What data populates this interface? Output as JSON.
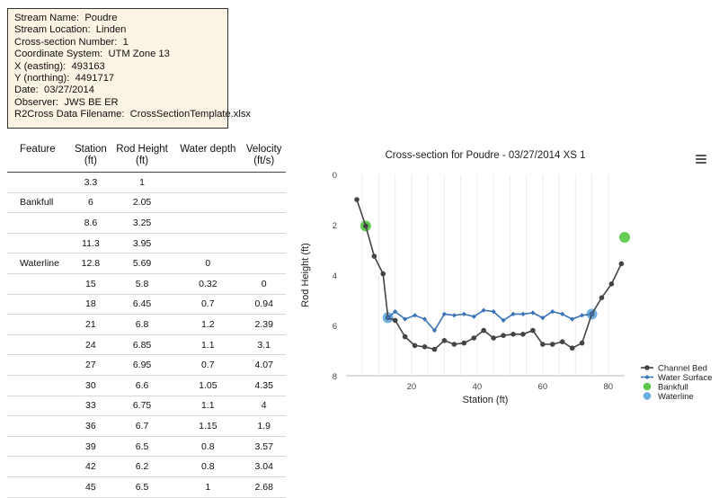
{
  "info": [
    {
      "label": "Stream Name:",
      "value": "Poudre"
    },
    {
      "label": "Stream Location:",
      "value": "Linden"
    },
    {
      "label": "Cross-section Number:",
      "value": "1"
    },
    {
      "label": "Coordinate System:",
      "value": "UTM Zone 13"
    },
    {
      "label": "X (easting):",
      "value": "493163"
    },
    {
      "label": "Y (northing):",
      "value": "4491717"
    },
    {
      "label": "Date:",
      "value": "03/27/2014"
    },
    {
      "label": "Observer:",
      "value": "JWS BE ER"
    },
    {
      "label": "R2Cross Data Filename:",
      "value": "CrossSectionTemplate.xlsx"
    }
  ],
  "table": {
    "headers": {
      "feature": "Feature",
      "station": "Station",
      "station_unit": "(ft)",
      "rod": "Rod Height",
      "rod_unit": "(ft)",
      "depth": "Water depth",
      "depth_unit": "(ft)",
      "velocity": "Velocity",
      "velocity_unit": "(ft/s)"
    },
    "rows": [
      {
        "feature": "",
        "station": "3.3",
        "rod": "1",
        "depth": "",
        "velocity": ""
      },
      {
        "feature": "Bankfull",
        "station": "6",
        "rod": "2.05",
        "depth": "",
        "velocity": ""
      },
      {
        "feature": "",
        "station": "8.6",
        "rod": "3.25",
        "depth": "",
        "velocity": ""
      },
      {
        "feature": "",
        "station": "11.3",
        "rod": "3.95",
        "depth": "",
        "velocity": ""
      },
      {
        "feature": "Waterline",
        "station": "12.8",
        "rod": "5.69",
        "depth": "0",
        "velocity": ""
      },
      {
        "feature": "",
        "station": "15",
        "rod": "5.8",
        "depth": "0.32",
        "velocity": "0"
      },
      {
        "feature": "",
        "station": "18",
        "rod": "6.45",
        "depth": "0.7",
        "velocity": "0.94"
      },
      {
        "feature": "",
        "station": "21",
        "rod": "6.8",
        "depth": "1.2",
        "velocity": "2.39"
      },
      {
        "feature": "",
        "station": "24",
        "rod": "6.85",
        "depth": "1.1",
        "velocity": "3.1"
      },
      {
        "feature": "",
        "station": "27",
        "rod": "6.95",
        "depth": "0.7",
        "velocity": "4.07"
      },
      {
        "feature": "",
        "station": "30",
        "rod": "6.6",
        "depth": "1.05",
        "velocity": "4.35"
      },
      {
        "feature": "",
        "station": "33",
        "rod": "6.75",
        "depth": "1.1",
        "velocity": "4"
      },
      {
        "feature": "",
        "station": "36",
        "rod": "6.7",
        "depth": "1.15",
        "velocity": "1.9"
      },
      {
        "feature": "",
        "station": "39",
        "rod": "6.5",
        "depth": "0.8",
        "velocity": "3.57"
      },
      {
        "feature": "",
        "station": "42",
        "rod": "6.2",
        "depth": "0.8",
        "velocity": "3.04"
      },
      {
        "feature": "",
        "station": "45",
        "rod": "6.5",
        "depth": "1",
        "velocity": "2.68"
      }
    ]
  },
  "chart_data": {
    "type": "line",
    "title": "Cross-section for Poudre - 03/27/2014 XS 1",
    "xlabel": "Station (ft)",
    "ylabel": "Rod Height (ft)",
    "xlim": [
      0,
      85
    ],
    "ylim": [
      0,
      8
    ],
    "y_reversed": true,
    "x_ticks": [
      20,
      40,
      60,
      80
    ],
    "y_ticks": [
      0,
      2,
      4,
      6,
      8
    ],
    "grid": true,
    "legend_position": "right",
    "series": [
      {
        "name": "Channel Bed",
        "color": "#444444",
        "marker": "circle",
        "x": [
          3.3,
          6,
          8.6,
          11.3,
          12.8,
          15,
          18,
          21,
          24,
          27,
          30,
          33,
          36,
          39,
          42,
          45,
          48,
          51,
          54,
          57,
          60,
          63,
          66,
          69,
          72,
          75,
          78,
          81,
          84
        ],
        "y": [
          1,
          2.05,
          3.25,
          3.95,
          5.69,
          5.8,
          6.45,
          6.8,
          6.85,
          6.95,
          6.6,
          6.75,
          6.7,
          6.5,
          6.2,
          6.5,
          6.4,
          6.35,
          6.35,
          6.2,
          6.75,
          6.75,
          6.65,
          6.9,
          6.7,
          5.55,
          4.9,
          4.35,
          3.55
        ]
      },
      {
        "name": "Water Surface",
        "color": "#3a73b8",
        "marker": "diamond",
        "x": [
          12.8,
          15,
          18,
          21,
          24,
          27,
          30,
          33,
          36,
          39,
          42,
          45,
          48,
          51,
          54,
          57,
          60,
          63,
          66,
          69,
          72,
          75
        ],
        "y": [
          5.69,
          5.45,
          5.75,
          5.6,
          5.75,
          6.2,
          5.55,
          5.6,
          5.55,
          5.65,
          5.4,
          5.45,
          5.8,
          5.55,
          5.55,
          5.5,
          5.7,
          5.45,
          5.55,
          5.75,
          5.6,
          5.55
        ]
      },
      {
        "name": "Bankfull",
        "color": "#5cc84a",
        "marker": "circle-large",
        "x": [
          6,
          85
        ],
        "y": [
          2.05,
          2.5
        ]
      },
      {
        "name": "Waterline",
        "color": "#6aaee0",
        "marker": "circle-large",
        "x": [
          12.8,
          75
        ],
        "y": [
          5.69,
          5.55
        ]
      }
    ]
  }
}
